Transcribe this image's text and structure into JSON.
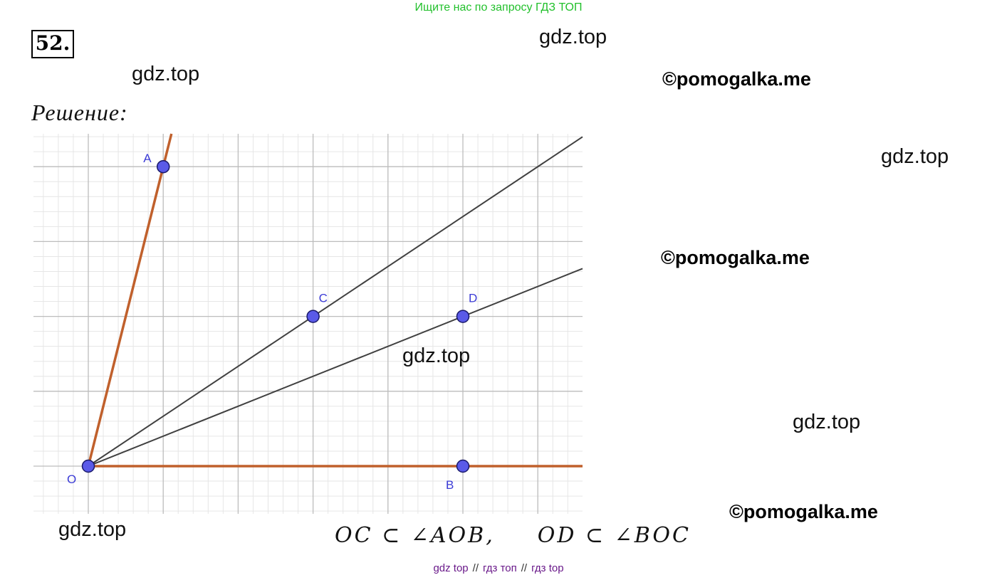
{
  "banner": {
    "text": "Ищите нас по запросу ГДЗ ТОП"
  },
  "problem": {
    "number": "52."
  },
  "solution": {
    "label": "Решение:"
  },
  "watermarks": {
    "gdz_1": "gdz.top",
    "gdz_2": "gdz.top",
    "gdz_3": "gdz.top",
    "gdz_4": "gdz.top",
    "gdz_5": "gdz.top",
    "gdz_6": "gdz.top",
    "pom_1": "©pomogalka.me",
    "pom_2": "©pomogalka.me",
    "pom_3": "©pomogalka.me"
  },
  "figure": {
    "points": [
      {
        "label": "A",
        "x": 1,
        "y": 4
      },
      {
        "label": "C",
        "x": 3,
        "y": 2
      },
      {
        "label": "D",
        "x": 5,
        "y": 2
      },
      {
        "label": "O",
        "x": 0,
        "y": 0
      },
      {
        "label": "B",
        "x": 5,
        "y": 0
      }
    ],
    "colors": {
      "ray": "#c0602c",
      "line": "#404040",
      "point": "#5a5ae8",
      "label": "#3b3bd6"
    }
  },
  "formula": {
    "part1": "OC ⊂ ∠AOB,",
    "part2": "OD ⊂ ∠BOC"
  },
  "footer": {
    "part1": "gdz top",
    "sep": "//",
    "part2": "гдз топ",
    "part3": "гдз top"
  }
}
